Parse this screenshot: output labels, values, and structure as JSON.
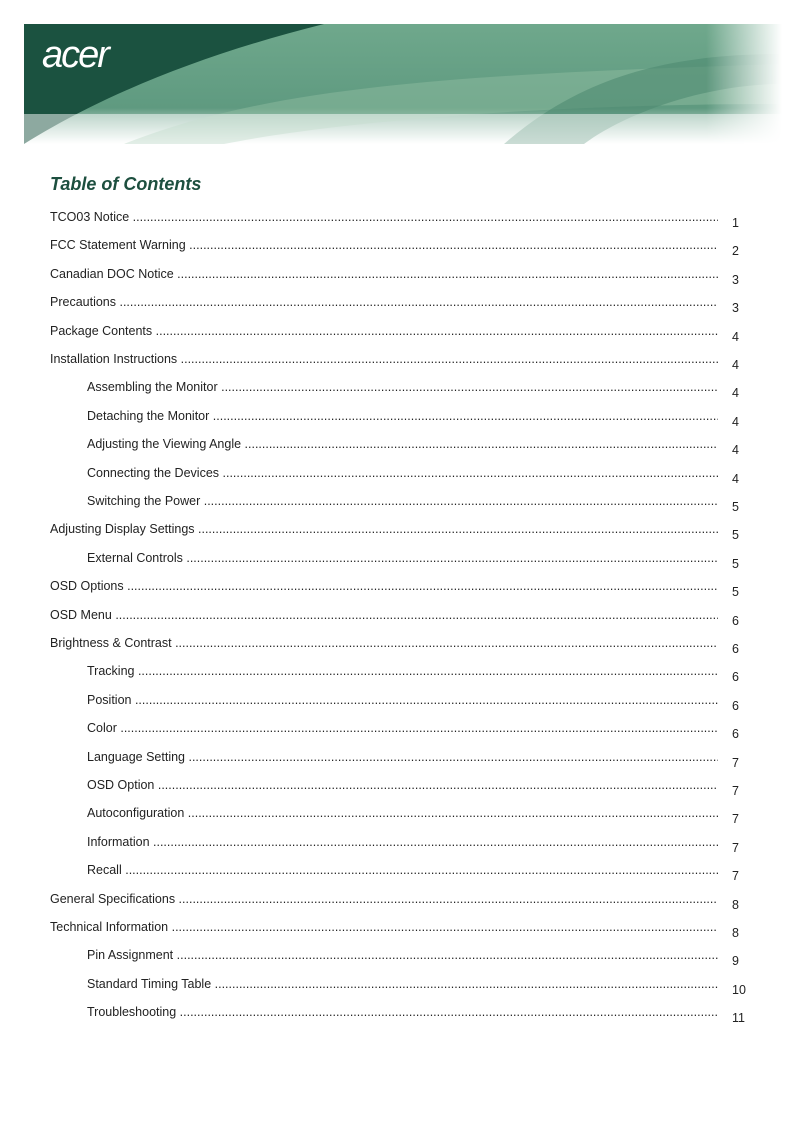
{
  "header": {
    "logo_text": "acer"
  },
  "title": "Table of Contents",
  "entries": [
    {
      "label": "TCO03 Notice",
      "page": "1",
      "level": 0
    },
    {
      "label": "FCC Statement Warning",
      "page": "2",
      "level": 0
    },
    {
      "label": "Canadian DOC Notice",
      "page": "3",
      "level": 0
    },
    {
      "label": "Precautions",
      "page": "3",
      "level": 0
    },
    {
      "label": "Package Contents",
      "page": "4",
      "level": 0
    },
    {
      "label": "Installation Instructions",
      "page": "4",
      "level": 0
    },
    {
      "label": "Assembling the Monitor",
      "page": "4",
      "level": 1
    },
    {
      "label": "Detaching the Monitor",
      "page": "4",
      "level": 1
    },
    {
      "label": "Adjusting the Viewing Angle",
      "page": "4",
      "level": 1
    },
    {
      "label": "Connecting the Devices",
      "page": "4",
      "level": 1
    },
    {
      "label": "Switching the Power",
      "page": "5",
      "level": 1
    },
    {
      "label": "Adjusting Display Settings",
      "page": "5",
      "level": 0
    },
    {
      "label": "External Controls",
      "page": "5",
      "level": 1
    },
    {
      "label": "OSD Options",
      "page": "5",
      "level": 0
    },
    {
      "label": "OSD Menu",
      "page": "6",
      "level": 0
    },
    {
      "label": "Brightness & Contrast",
      "page": "6",
      "level": 0
    },
    {
      "label": "Tracking",
      "page": "6",
      "level": 1
    },
    {
      "label": "Position",
      "page": "6",
      "level": 1
    },
    {
      "label": "Color",
      "page": "6",
      "level": 1
    },
    {
      "label": "Language Setting",
      "page": "7",
      "level": 1
    },
    {
      "label": "OSD Option",
      "page": "7",
      "level": 1
    },
    {
      "label": "Autoconfiguration",
      "page": "7",
      "level": 1
    },
    {
      "label": "Information",
      "page": "7",
      "level": 1
    },
    {
      "label": "Recall",
      "page": "7",
      "level": 1
    },
    {
      "label": "General Specifications",
      "page": "8",
      "level": 0
    },
    {
      "label": "Technical Information",
      "page": "8",
      "level": 0
    },
    {
      "label": "Pin Assignment",
      "page": "9",
      "level": 1
    },
    {
      "label": "Standard Timing Table",
      "page": "10",
      "level": 1
    },
    {
      "label": "Troubleshooting",
      "page": "11",
      "level": 1
    }
  ]
}
